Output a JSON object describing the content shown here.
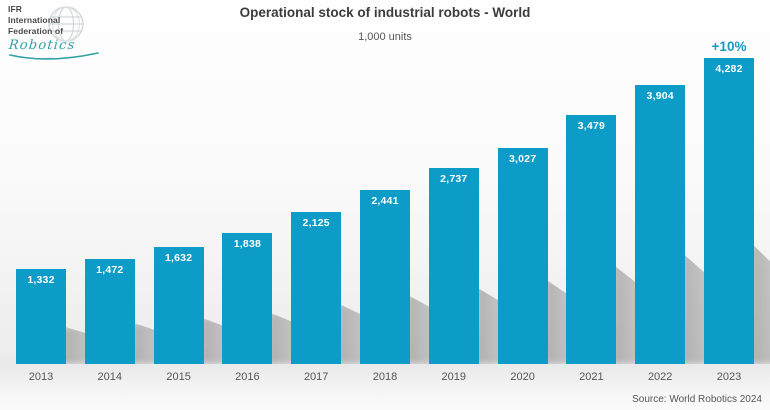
{
  "logo": {
    "line1": "IFR",
    "line2": "International",
    "line3": "Federation of",
    "script": "Robotics",
    "script_color": "#2fa0a8",
    "globe_icon": "globe-icon",
    "globe_color": "#c9d2d4"
  },
  "header": {
    "title": "Operational stock of industrial robots - World",
    "subtitle": "1,000 units"
  },
  "chart_data": {
    "type": "bar",
    "title": "Operational stock of industrial robots - World",
    "subtitle": "1,000 units",
    "xlabel": "",
    "ylabel": "1,000 units",
    "categories": [
      "2013",
      "2014",
      "2015",
      "2016",
      "2017",
      "2018",
      "2019",
      "2020",
      "2021",
      "2022",
      "2023"
    ],
    "values": [
      1332,
      1472,
      1632,
      1838,
      2125,
      2441,
      2737,
      3027,
      3479,
      3904,
      4282
    ],
    "value_labels": [
      "1,332",
      "1,472",
      "1,632",
      "1,838",
      "2,125",
      "2,441",
      "2,737",
      "3,027",
      "3,479",
      "3,904",
      "4,282"
    ],
    "ylim": [
      0,
      4500
    ],
    "grid": false,
    "legend": false,
    "axis_line": false,
    "bar_color": "#0d9bc7",
    "bar_label_color": "#ffffff",
    "tick_label_color": "#565656",
    "annotation": {
      "text": "+10%",
      "target_category": "2023",
      "color": "#1999be",
      "meaning": "year-over-year growth of last bar"
    }
  },
  "footer": {
    "source": "Source: World Robotics 2024"
  }
}
